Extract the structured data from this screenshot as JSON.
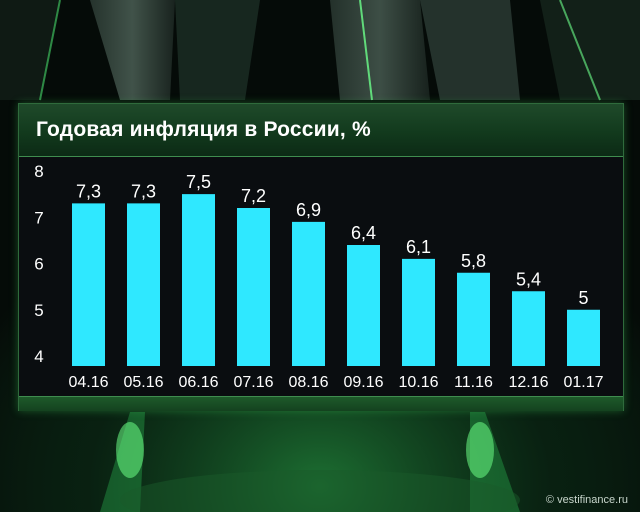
{
  "chart_data": {
    "type": "bar",
    "title": "Годовая инфляция в России, %",
    "categories": [
      "04.16",
      "05.16",
      "06.16",
      "07.16",
      "08.16",
      "09.16",
      "10.16",
      "11.16",
      "12.16",
      "01.17"
    ],
    "values": [
      7.3,
      7.3,
      7.5,
      7.2,
      6.9,
      6.4,
      6.1,
      5.8,
      5.4,
      5.0
    ],
    "value_labels": [
      "7,3",
      "7,3",
      "7,5",
      "7,2",
      "6,9",
      "6,4",
      "6,1",
      "5,8",
      "5,4",
      "5"
    ],
    "ylim": [
      4,
      8
    ],
    "yticks": [
      "4",
      "5",
      "6",
      "7",
      "8"
    ],
    "grid": false,
    "bar_color": "#2fe8ff"
  },
  "watermark": "© vestifinance.ru",
  "colors": {
    "panel_bg": "#0a0d10",
    "title_bg": "#1f4a2a",
    "text": "#ffffff",
    "accent_green": "#4fe07a"
  }
}
